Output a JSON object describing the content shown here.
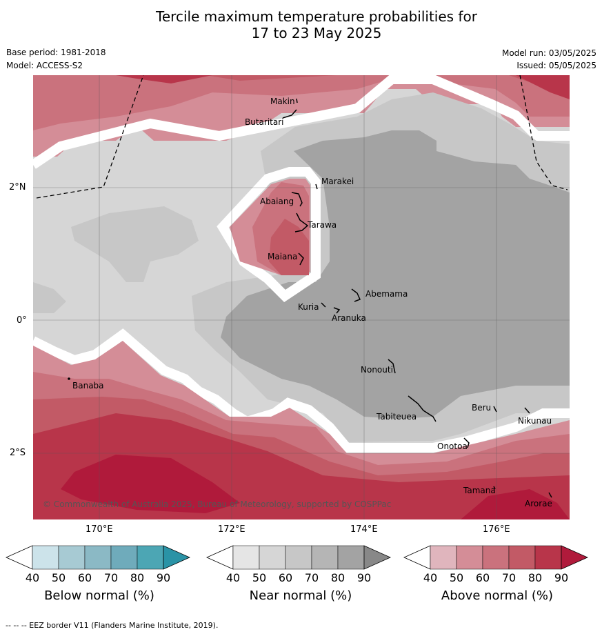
{
  "title": {
    "line1": "Tercile maximum temperature probabilities for",
    "line2": "17 to 23 May 2025"
  },
  "meta": {
    "base_period": "Base period: 1981-2018",
    "model": "Model: ACCESS-S2",
    "model_run": "Model run: 03/05/2025",
    "issued": "Issued: 05/05/2025"
  },
  "axes": {
    "lat_labels": [
      "2°N",
      "0°",
      "2°S"
    ],
    "lon_labels": [
      "170°E",
      "172°E",
      "174°E",
      "176°E"
    ]
  },
  "places": [
    {
      "name": "Makin"
    },
    {
      "name": "Butaritari"
    },
    {
      "name": "Marakei"
    },
    {
      "name": "Abaiang"
    },
    {
      "name": "Tarawa"
    },
    {
      "name": "Maiana"
    },
    {
      "name": "Abemama"
    },
    {
      "name": "Kuria"
    },
    {
      "name": "Aranuka"
    },
    {
      "name": "Nonouti"
    },
    {
      "name": "Beru"
    },
    {
      "name": "Nikunau"
    },
    {
      "name": "Tabiteuea"
    },
    {
      "name": "Onotoa"
    },
    {
      "name": "Banaba"
    },
    {
      "name": "Tamana"
    },
    {
      "name": "Arorae"
    }
  ],
  "copyright": "© Commonwealth of Australia 2025, Bureau of Meteorology, supported by COSPPac",
  "colorbars": [
    {
      "title": "Below normal (%)",
      "ticks": [
        "40",
        "50",
        "60",
        "70",
        "80",
        "90"
      ],
      "colors": [
        "#ffffff",
        "#cce3ea",
        "#a7cad3",
        "#8bb9c5",
        "#6fabbb",
        "#4ca6b4",
        "#2a93a6"
      ]
    },
    {
      "title": "Near normal (%)",
      "ticks": [
        "40",
        "50",
        "60",
        "70",
        "80",
        "90"
      ],
      "colors": [
        "#ffffff",
        "#e5e5e5",
        "#d6d6d6",
        "#c7c7c7",
        "#b5b5b5",
        "#a3a3a3",
        "#888888"
      ]
    },
    {
      "title": "Above normal (%)",
      "ticks": [
        "40",
        "50",
        "60",
        "70",
        "80",
        "90"
      ],
      "colors": [
        "#ffffff",
        "#e0b5bd",
        "#d48d97",
        "#ca727d",
        "#c25a66",
        "#b8354a",
        "#b01a3b"
      ]
    }
  ],
  "footer": "--  --  -- EEZ border V11 (Flanders Marine Institute, 2019)."
}
